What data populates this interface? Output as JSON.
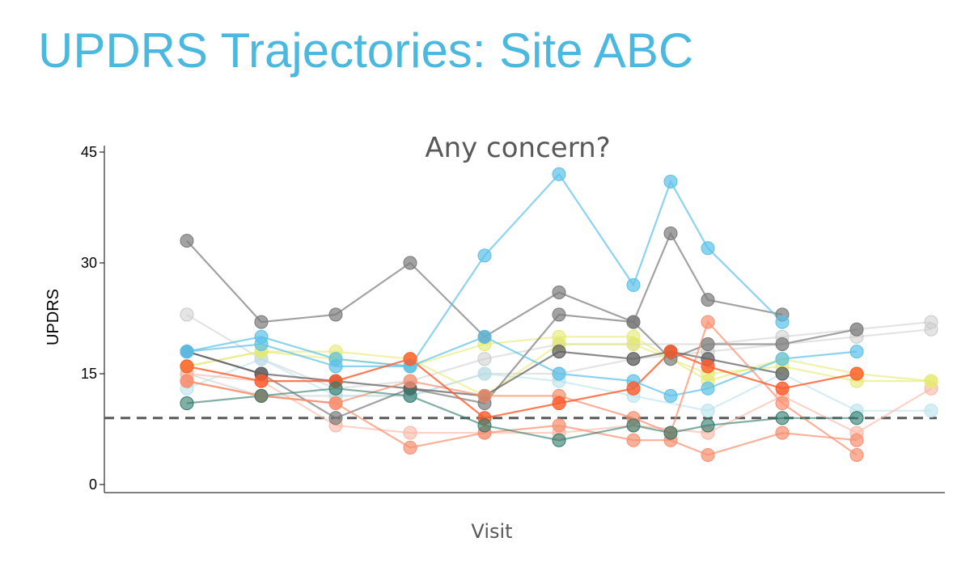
{
  "slide": {
    "title": "UPDRS Trajectories: Site ABC"
  },
  "chart_data": {
    "type": "line",
    "title": "Any concern?",
    "xlabel": "Visit",
    "ylabel": "UPDRS",
    "ylim": [
      0,
      45
    ],
    "yticks": [
      0,
      15,
      30,
      45
    ],
    "xlim": [
      0,
      11.5
    ],
    "grid": false,
    "reference_line": {
      "y": 9,
      "style": "dashed",
      "color": "#5a5a5a"
    },
    "series": [
      {
        "color": "#c9c9c9",
        "opacity": 0.5,
        "points": [
          [
            1,
            23
          ],
          [
            2,
            17
          ],
          [
            3,
            13
          ],
          [
            4,
            14
          ],
          [
            5,
            17
          ],
          [
            6,
            19
          ],
          [
            7,
            19
          ],
          [
            8,
            19
          ],
          [
            9,
            20
          ],
          [
            10,
            21
          ],
          [
            11,
            22
          ]
        ]
      },
      {
        "color": "#c9c9c9",
        "opacity": 0.5,
        "points": [
          [
            1,
            15
          ],
          [
            2,
            12
          ],
          [
            3,
            12
          ],
          [
            4,
            12
          ],
          [
            5,
            15
          ],
          [
            6,
            15
          ],
          [
            7,
            17
          ],
          [
            8,
            18
          ],
          [
            9,
            19
          ],
          [
            10,
            20
          ],
          [
            11,
            21
          ]
        ]
      },
      {
        "color": "#b8e2ec",
        "opacity": 0.6,
        "points": [
          [
            1,
            13
          ],
          [
            2,
            17
          ],
          [
            3,
            12
          ],
          [
            4,
            12
          ],
          [
            5,
            15
          ],
          [
            6,
            14
          ],
          [
            7,
            12
          ],
          [
            8,
            10
          ],
          [
            9,
            15
          ],
          [
            10,
            10
          ],
          [
            11,
            10
          ]
        ]
      },
      {
        "color": "#fbb5a4",
        "opacity": 0.6,
        "points": [
          [
            1,
            15
          ],
          [
            2,
            14
          ],
          [
            3,
            8
          ],
          [
            4,
            7
          ],
          [
            5,
            7
          ],
          [
            6,
            7
          ],
          [
            7,
            8
          ],
          [
            8,
            7
          ],
          [
            9,
            12
          ],
          [
            10,
            7
          ],
          [
            11,
            13
          ]
        ]
      },
      {
        "color": "#e5ea6e",
        "opacity": 0.6,
        "points": [
          [
            1,
            16
          ],
          [
            2,
            18
          ],
          [
            3,
            18
          ],
          [
            4,
            17
          ],
          [
            5,
            12
          ],
          [
            6,
            19
          ],
          [
            7,
            19
          ],
          [
            8,
            15
          ],
          [
            9,
            16
          ],
          [
            10,
            14
          ],
          [
            11,
            14
          ]
        ]
      },
      {
        "color": "#e5ea6e",
        "opacity": 0.6,
        "points": [
          [
            1,
            16
          ],
          [
            2,
            18
          ],
          [
            3,
            17
          ],
          [
            4,
            16
          ],
          [
            5,
            19
          ],
          [
            6,
            20
          ],
          [
            7,
            20
          ],
          [
            8,
            14
          ],
          [
            9,
            17
          ],
          [
            10,
            15
          ],
          [
            11,
            14
          ]
        ]
      },
      {
        "color": "#7a7a7a",
        "opacity": 0.7,
        "points": [
          [
            1,
            33
          ],
          [
            2,
            22
          ],
          [
            3,
            23
          ],
          [
            4,
            30
          ],
          [
            5,
            20
          ],
          [
            6,
            26
          ],
          [
            7,
            22
          ],
          [
            7.5,
            34
          ],
          [
            8,
            25
          ],
          [
            9,
            23
          ]
        ]
      },
      {
        "color": "#7a7a7a",
        "opacity": 0.7,
        "points": [
          [
            1,
            18
          ],
          [
            2,
            15
          ],
          [
            3,
            9
          ],
          [
            4,
            13
          ],
          [
            5,
            11
          ],
          [
            6,
            23
          ],
          [
            7,
            22
          ],
          [
            7.5,
            17
          ],
          [
            8,
            19
          ],
          [
            9,
            19
          ],
          [
            10,
            21
          ]
        ]
      },
      {
        "color": "#5a5a5a",
        "opacity": 0.7,
        "points": [
          [
            1,
            18
          ],
          [
            2,
            15
          ],
          [
            3,
            14
          ],
          [
            4,
            13
          ],
          [
            5,
            12
          ],
          [
            6,
            18
          ],
          [
            7,
            17
          ],
          [
            7.5,
            18
          ],
          [
            8,
            17
          ],
          [
            9,
            15
          ]
        ]
      },
      {
        "color": "#5bc0e8",
        "opacity": 0.7,
        "points": [
          [
            1,
            18
          ],
          [
            2,
            20
          ],
          [
            3,
            17
          ],
          [
            4,
            16
          ],
          [
            5,
            31
          ],
          [
            6,
            42
          ],
          [
            7,
            27
          ],
          [
            7.5,
            41
          ],
          [
            8,
            32
          ],
          [
            9,
            22
          ]
        ]
      },
      {
        "color": "#5bc0e8",
        "opacity": 0.7,
        "points": [
          [
            1,
            18
          ],
          [
            2,
            19
          ],
          [
            3,
            16
          ],
          [
            4,
            16
          ],
          [
            5,
            20
          ],
          [
            6,
            15
          ],
          [
            7,
            14
          ],
          [
            7.5,
            12
          ],
          [
            8,
            13
          ],
          [
            9,
            17
          ],
          [
            10,
            18
          ]
        ]
      },
      {
        "color": "#fa8f6f",
        "opacity": 0.7,
        "points": [
          [
            1,
            14
          ],
          [
            2,
            12
          ],
          [
            3,
            11
          ],
          [
            4,
            5
          ],
          [
            5,
            7
          ],
          [
            6,
            8
          ],
          [
            7,
            6
          ],
          [
            7.5,
            6
          ],
          [
            8,
            4
          ],
          [
            9,
            7
          ],
          [
            10,
            6
          ]
        ]
      },
      {
        "color": "#fa8f6f",
        "opacity": 0.7,
        "points": [
          [
            1,
            14
          ],
          [
            2,
            12
          ],
          [
            3,
            11
          ],
          [
            4,
            14
          ],
          [
            5,
            12
          ],
          [
            6,
            12
          ],
          [
            7,
            9
          ],
          [
            7.5,
            7
          ],
          [
            8,
            22
          ],
          [
            9,
            11
          ],
          [
            10,
            4
          ]
        ]
      },
      {
        "color": "#ff5a2a",
        "opacity": 0.8,
        "points": [
          [
            1,
            16
          ],
          [
            2,
            14
          ],
          [
            3,
            14
          ],
          [
            4,
            17
          ],
          [
            5,
            9
          ],
          [
            6,
            11
          ],
          [
            7,
            13
          ],
          [
            7.5,
            18
          ],
          [
            8,
            16
          ],
          [
            9,
            13
          ],
          [
            10,
            15
          ]
        ]
      },
      {
        "color": "#2d7a6a",
        "opacity": 0.6,
        "points": [
          [
            1,
            11
          ],
          [
            2,
            12
          ],
          [
            3,
            13
          ],
          [
            4,
            12
          ],
          [
            5,
            8
          ],
          [
            6,
            6
          ],
          [
            7,
            8
          ],
          [
            7.5,
            7
          ],
          [
            8,
            8
          ],
          [
            9,
            9
          ],
          [
            10,
            9
          ]
        ]
      }
    ]
  }
}
